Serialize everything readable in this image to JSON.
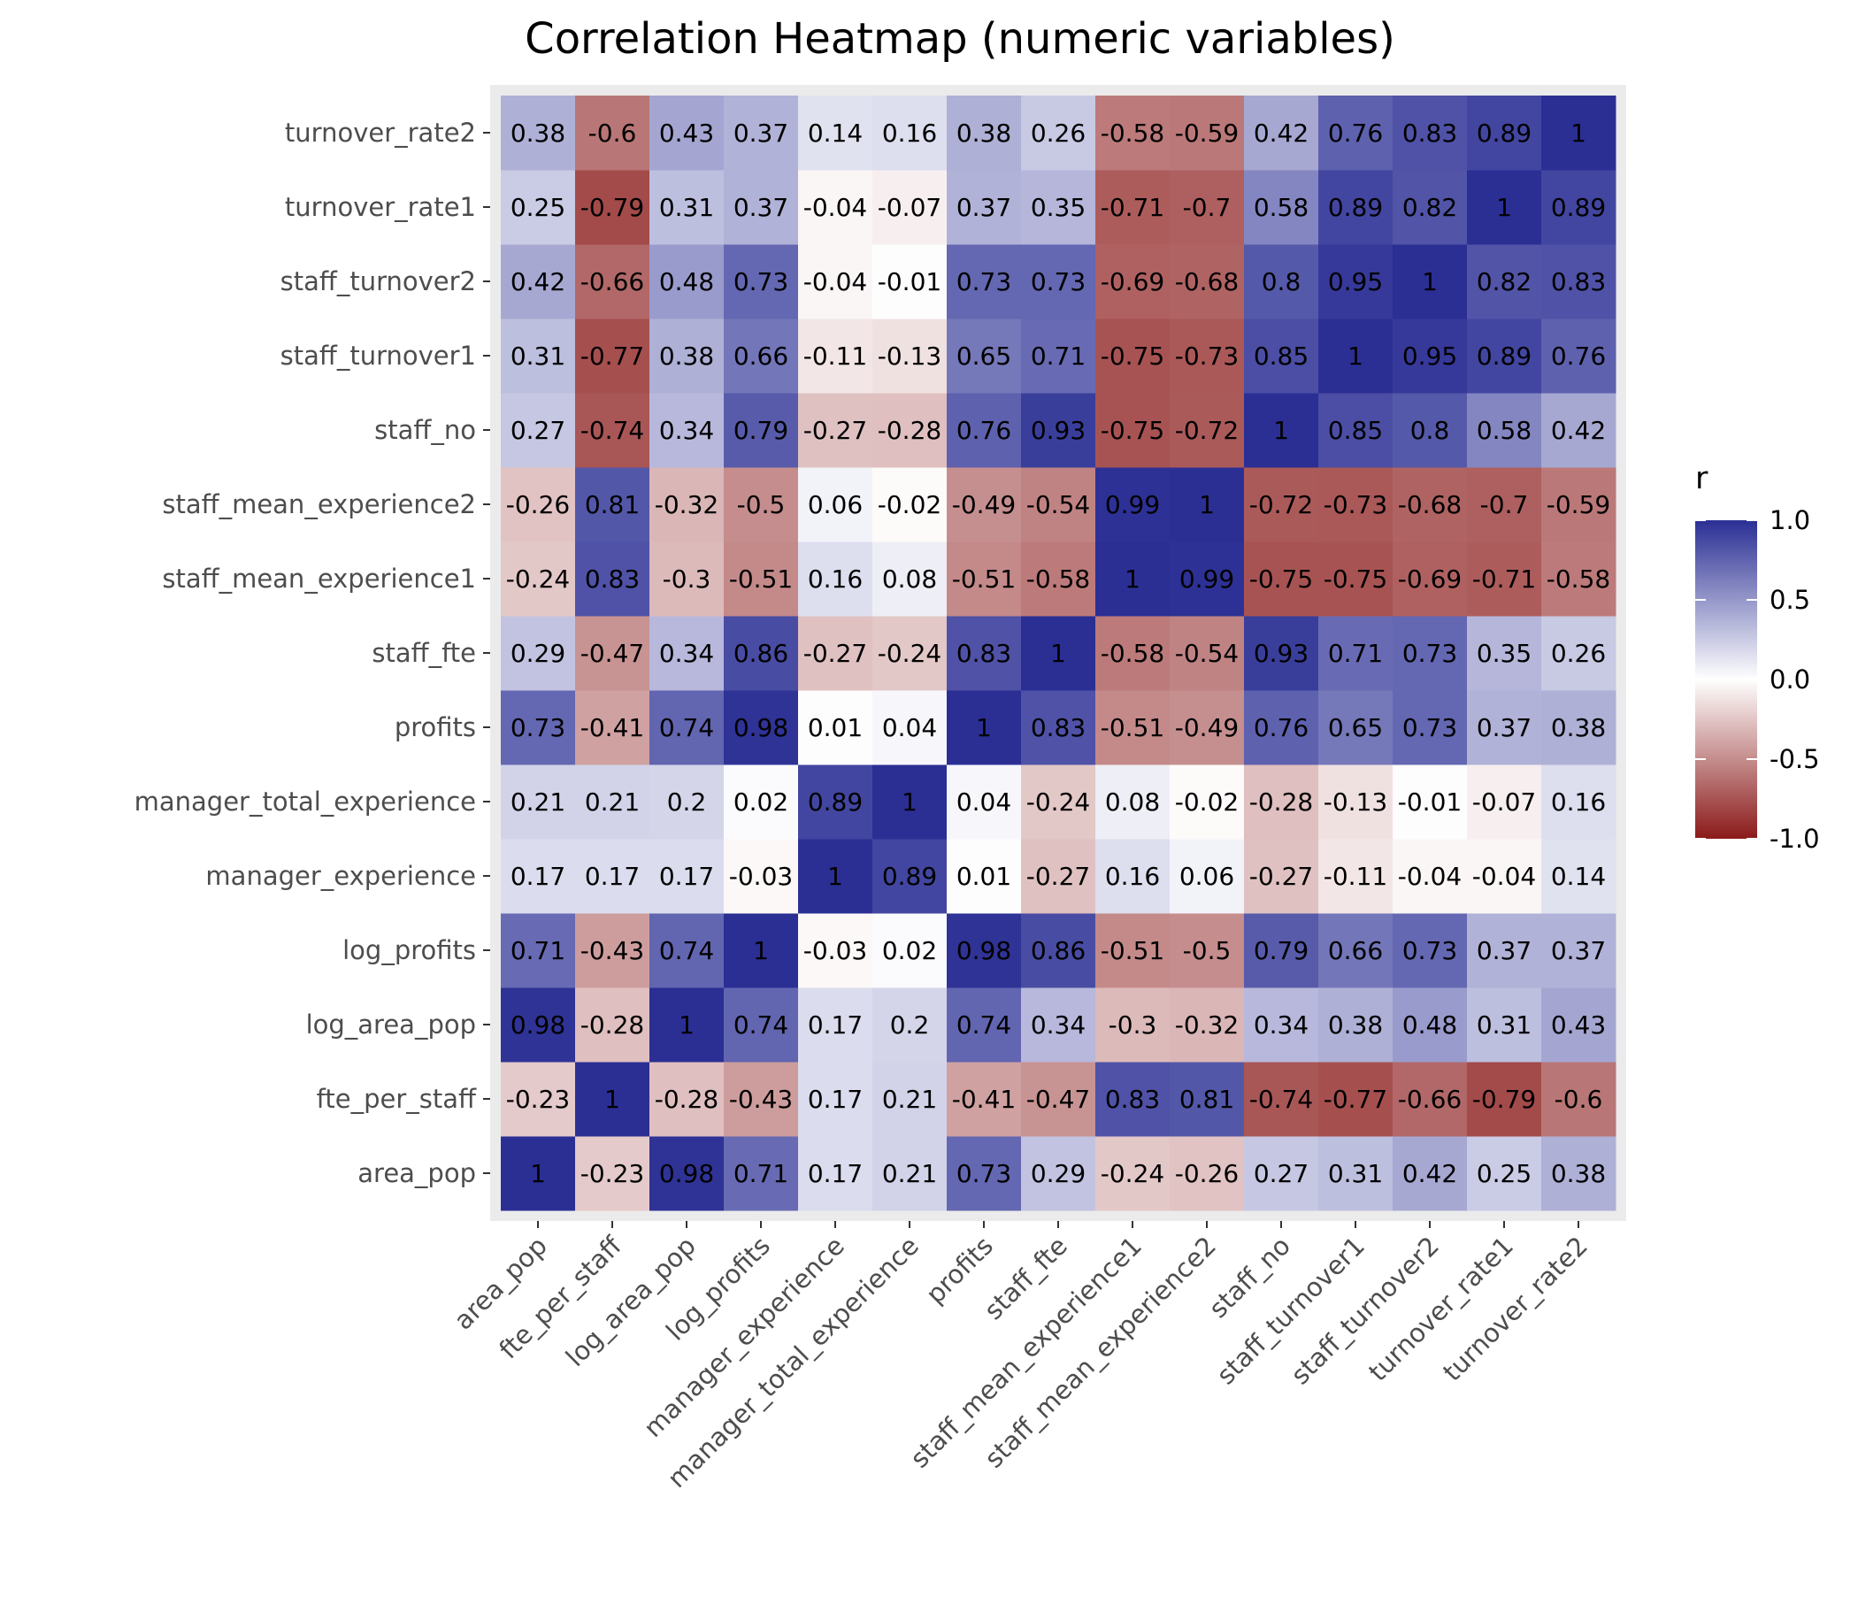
{
  "chart_data": {
    "type": "heatmap",
    "title": "Correlation Heatmap (numeric variables)",
    "xlabel": "",
    "ylabel": "",
    "variables": [
      "area_pop",
      "fte_per_staff",
      "log_area_pop",
      "log_profits",
      "manager_experience",
      "manager_total_experience",
      "profits",
      "staff_fte",
      "staff_mean_experience1",
      "staff_mean_experience2",
      "staff_no",
      "staff_turnover1",
      "staff_turnover2",
      "turnover_rate1",
      "turnover_rate2"
    ],
    "matrix": [
      [
        1,
        -0.23,
        0.98,
        0.71,
        0.17,
        0.21,
        0.73,
        0.29,
        -0.24,
        -0.26,
        0.27,
        0.31,
        0.42,
        0.25,
        0.38
      ],
      [
        -0.23,
        1,
        -0.28,
        -0.43,
        0.17,
        0.21,
        -0.41,
        -0.47,
        0.83,
        0.81,
        -0.74,
        -0.77,
        -0.66,
        -0.79,
        -0.6
      ],
      [
        0.98,
        -0.28,
        1,
        0.74,
        0.17,
        0.2,
        0.74,
        0.34,
        -0.3,
        -0.32,
        0.34,
        0.38,
        0.48,
        0.31,
        0.43
      ],
      [
        0.71,
        -0.43,
        0.74,
        1,
        -0.03,
        0.02,
        0.98,
        0.86,
        -0.51,
        -0.5,
        0.79,
        0.66,
        0.73,
        0.37,
        0.37
      ],
      [
        0.17,
        0.17,
        0.17,
        -0.03,
        1,
        0.89,
        0.01,
        -0.27,
        0.16,
        0.06,
        -0.27,
        -0.11,
        -0.04,
        -0.04,
        0.14
      ],
      [
        0.21,
        0.21,
        0.2,
        0.02,
        0.89,
        1,
        0.04,
        -0.24,
        0.08,
        -0.02,
        -0.28,
        -0.13,
        -0.01,
        -0.07,
        0.16
      ],
      [
        0.73,
        -0.41,
        0.74,
        0.98,
        0.01,
        0.04,
        1,
        0.83,
        -0.51,
        -0.49,
        0.76,
        0.65,
        0.73,
        0.37,
        0.38
      ],
      [
        0.29,
        -0.47,
        0.34,
        0.86,
        -0.27,
        -0.24,
        0.83,
        1,
        -0.58,
        -0.54,
        0.93,
        0.71,
        0.73,
        0.35,
        0.26
      ],
      [
        -0.24,
        0.83,
        -0.3,
        -0.51,
        0.16,
        0.08,
        -0.51,
        -0.58,
        1,
        0.99,
        -0.75,
        -0.75,
        -0.69,
        -0.71,
        -0.58
      ],
      [
        -0.26,
        0.81,
        -0.32,
        -0.5,
        0.06,
        -0.02,
        -0.49,
        -0.54,
        0.99,
        1,
        -0.72,
        -0.73,
        -0.68,
        -0.7,
        -0.59
      ],
      [
        0.27,
        -0.74,
        0.34,
        0.79,
        -0.27,
        -0.28,
        0.76,
        0.93,
        -0.75,
        -0.72,
        1,
        0.85,
        0.8,
        0.58,
        0.42
      ],
      [
        0.31,
        -0.77,
        0.38,
        0.66,
        -0.11,
        -0.13,
        0.65,
        0.71,
        -0.75,
        -0.73,
        0.85,
        1,
        0.95,
        0.89,
        0.76
      ],
      [
        0.42,
        -0.66,
        0.48,
        0.73,
        -0.04,
        -0.01,
        0.73,
        0.73,
        -0.69,
        -0.68,
        0.8,
        0.95,
        1,
        0.82,
        0.83
      ],
      [
        0.25,
        -0.79,
        0.31,
        0.37,
        -0.04,
        -0.07,
        0.37,
        0.35,
        -0.71,
        -0.7,
        0.58,
        0.89,
        0.82,
        1,
        0.89
      ],
      [
        0.38,
        -0.6,
        0.43,
        0.37,
        0.14,
        0.16,
        0.38,
        0.26,
        -0.58,
        -0.59,
        0.42,
        0.76,
        0.83,
        0.89,
        1
      ]
    ],
    "color_scale": {
      "name": "r",
      "range": [
        -1,
        1
      ],
      "low": "#8b1a1a",
      "mid": "#ffffff",
      "high": "#2b2f94",
      "ticks": [
        1.0,
        0.5,
        0.0,
        -0.5,
        -1.0
      ],
      "tick_labels": [
        "1.0",
        "0.5",
        "0.0",
        "-0.5",
        "-1.0"
      ]
    },
    "panel_background": "#ebebeb",
    "grid": true,
    "legend_position": "right"
  }
}
